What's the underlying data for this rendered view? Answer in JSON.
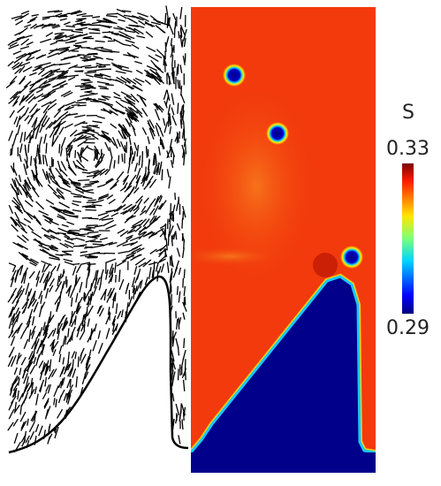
{
  "chart_data": {
    "type": "heatmap",
    "colorbar": {
      "label": "S",
      "lim": [
        0.29,
        0.33
      ],
      "ticks": [
        0.33,
        0.29
      ]
    }
  }
}
